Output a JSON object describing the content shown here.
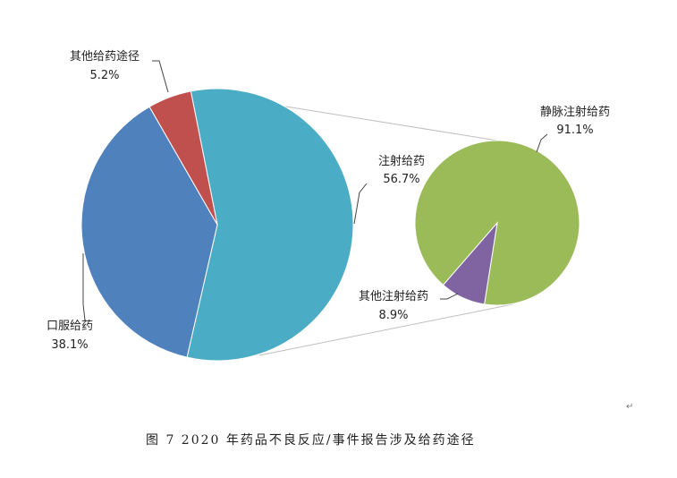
{
  "chart_data": {
    "type": "pie-of-pie",
    "main_pie": {
      "slices": [
        {
          "label": "注射给药",
          "value": 56.7,
          "value_label": "56.7%",
          "color": "#4BACC6"
        },
        {
          "label": "口服给药",
          "value": 38.1,
          "value_label": "38.1%",
          "color": "#4F81BD"
        },
        {
          "label": "其他给药途径",
          "value": 5.2,
          "value_label": "5.2%",
          "color": "#C0504D"
        }
      ]
    },
    "secondary_pie": {
      "expands": "注射给药",
      "slices": [
        {
          "label": "静脉注射给药",
          "value": 91.1,
          "value_label": "91.1%",
          "color": "#9BBB59"
        },
        {
          "label": "其他注射给药",
          "value": 8.9,
          "value_label": "8.9%",
          "color": "#8064A2"
        }
      ]
    },
    "connector_color": "#BFBFBF"
  },
  "caption": "图 7   2020 年药品不良反应/事件报告涉及给药途径",
  "paragraph_mark": "↵"
}
